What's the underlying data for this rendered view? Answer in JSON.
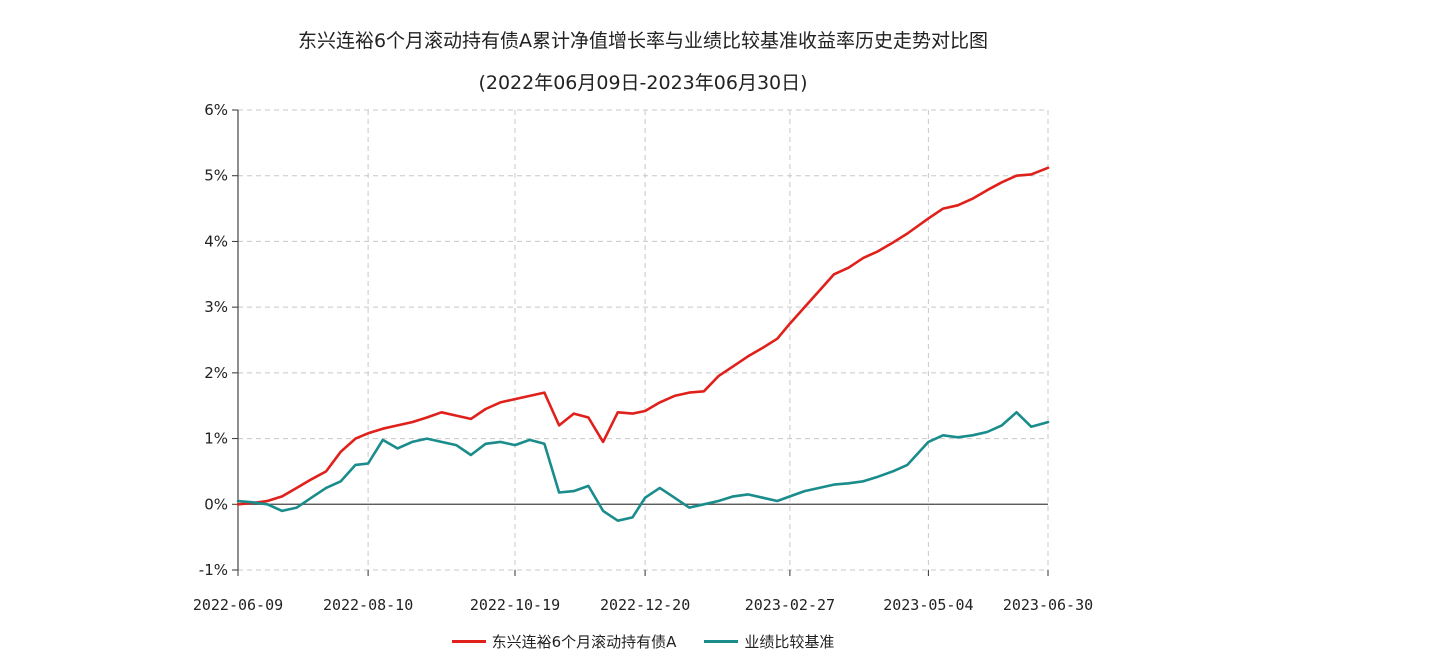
{
  "chart_data": {
    "type": "line",
    "title": "东兴连裕6个月滚动持有债A累计净值增长率与业绩比较基准收益率历史走势对比图",
    "subtitle": "(2022年06月09日-2023年06月30日)",
    "x_ticks": [
      "2022-06-09",
      "2022-08-10",
      "2022-10-19",
      "2022-12-20",
      "2023-02-27",
      "2023-05-04",
      "2023-06-30"
    ],
    "y_ticks": [
      "-1%",
      "0%",
      "1%",
      "2%",
      "3%",
      "4%",
      "5%",
      "6%"
    ],
    "ylim": [
      -1,
      6
    ],
    "grid": true,
    "legend_position": "bottom-center",
    "series": [
      {
        "name": "东兴连裕6个月滚动持有债A",
        "color": "#e0201b",
        "x": [
          "2022-06-09",
          "2022-06-16",
          "2022-06-23",
          "2022-06-30",
          "2022-07-07",
          "2022-07-14",
          "2022-07-21",
          "2022-07-28",
          "2022-08-04",
          "2022-08-10",
          "2022-08-17",
          "2022-08-24",
          "2022-08-31",
          "2022-09-07",
          "2022-09-14",
          "2022-09-21",
          "2022-09-28",
          "2022-10-05",
          "2022-10-12",
          "2022-10-19",
          "2022-10-26",
          "2022-11-02",
          "2022-11-09",
          "2022-11-16",
          "2022-11-23",
          "2022-11-30",
          "2022-12-07",
          "2022-12-14",
          "2022-12-20",
          "2022-12-27",
          "2023-01-03",
          "2023-01-10",
          "2023-01-17",
          "2023-01-24",
          "2023-01-31",
          "2023-02-07",
          "2023-02-14",
          "2023-02-21",
          "2023-02-27",
          "2023-03-06",
          "2023-03-13",
          "2023-03-20",
          "2023-03-27",
          "2023-04-03",
          "2023-04-10",
          "2023-04-17",
          "2023-04-24",
          "2023-05-04",
          "2023-05-11",
          "2023-05-18",
          "2023-05-25",
          "2023-06-01",
          "2023-06-08",
          "2023-06-15",
          "2023-06-22",
          "2023-06-30"
        ],
        "values": [
          0.0,
          0.02,
          0.05,
          0.12,
          0.25,
          0.38,
          0.5,
          0.8,
          1.0,
          1.08,
          1.15,
          1.2,
          1.25,
          1.32,
          1.4,
          1.35,
          1.3,
          1.45,
          1.55,
          1.6,
          1.65,
          1.7,
          1.2,
          1.38,
          1.32,
          0.95,
          1.4,
          1.38,
          1.42,
          1.55,
          1.65,
          1.7,
          1.72,
          1.95,
          2.1,
          2.25,
          2.38,
          2.52,
          2.75,
          3.0,
          3.25,
          3.5,
          3.6,
          3.75,
          3.85,
          3.98,
          4.12,
          4.35,
          4.5,
          4.55,
          4.65,
          4.78,
          4.9,
          5.0,
          5.02,
          5.12
        ]
      },
      {
        "name": "业绩比较基准",
        "color": "#1a8c8c",
        "x": [
          "2022-06-09",
          "2022-06-16",
          "2022-06-23",
          "2022-06-30",
          "2022-07-07",
          "2022-07-14",
          "2022-07-21",
          "2022-07-28",
          "2022-08-04",
          "2022-08-10",
          "2022-08-17",
          "2022-08-24",
          "2022-08-31",
          "2022-09-07",
          "2022-09-14",
          "2022-09-21",
          "2022-09-28",
          "2022-10-05",
          "2022-10-12",
          "2022-10-19",
          "2022-10-26",
          "2022-11-02",
          "2022-11-09",
          "2022-11-16",
          "2022-11-23",
          "2022-11-30",
          "2022-12-07",
          "2022-12-14",
          "2022-12-20",
          "2022-12-27",
          "2023-01-03",
          "2023-01-10",
          "2023-01-17",
          "2023-01-24",
          "2023-01-31",
          "2023-02-07",
          "2023-02-14",
          "2023-02-21",
          "2023-02-27",
          "2023-03-06",
          "2023-03-13",
          "2023-03-20",
          "2023-03-27",
          "2023-04-03",
          "2023-04-10",
          "2023-04-17",
          "2023-04-24",
          "2023-05-04",
          "2023-05-11",
          "2023-05-18",
          "2023-05-25",
          "2023-06-01",
          "2023-06-08",
          "2023-06-15",
          "2023-06-22",
          "2023-06-30"
        ],
        "values": [
          0.05,
          0.03,
          0.0,
          -0.1,
          -0.05,
          0.1,
          0.25,
          0.35,
          0.6,
          0.62,
          0.98,
          0.85,
          0.95,
          1.0,
          0.95,
          0.9,
          0.75,
          0.92,
          0.95,
          0.9,
          0.98,
          0.92,
          0.18,
          0.2,
          0.28,
          -0.1,
          -0.25,
          -0.2,
          0.1,
          0.25,
          0.1,
          -0.05,
          0.0,
          0.05,
          0.12,
          0.15,
          0.1,
          0.05,
          0.12,
          0.2,
          0.25,
          0.3,
          0.32,
          0.35,
          0.42,
          0.5,
          0.6,
          0.95,
          1.05,
          1.02,
          1.05,
          1.1,
          1.2,
          1.4,
          1.18,
          1.25
        ]
      }
    ]
  }
}
